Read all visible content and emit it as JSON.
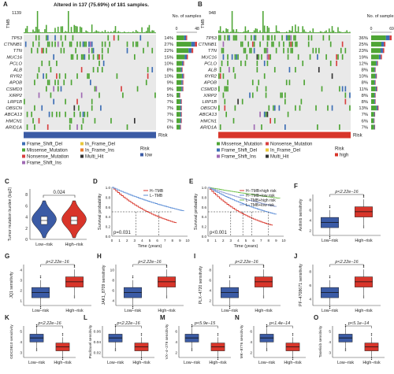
{
  "panels": {
    "A": {
      "letter": "A",
      "title": "Altered in 137 (75.69%) of 181 samples.",
      "tmb_label": "TMB",
      "tmb_max": "1139",
      "nos_label": "No. of samples",
      "nos_ticks": [
        "0",
        "48"
      ],
      "genes": [
        "TP53",
        "CTNNB1",
        "TTN",
        "MUC16",
        "PCLO",
        "ALB",
        "RYR2",
        "APOB",
        "CSMD3",
        "XIRP2",
        "LRP1B",
        "OBSCN",
        "ABCA13",
        "HMCN1",
        "ARID1A"
      ],
      "pcts": [
        "14%",
        "27%",
        "22%",
        "15%",
        "10%",
        "8%",
        "10%",
        "9%",
        "9%",
        "5%",
        "7%",
        "7%",
        "7%",
        "7%",
        "6%"
      ],
      "risk_label": "Risk",
      "legend": [
        "Frame_Shift_Del",
        "In_Frame_Del",
        "Missense_Mutation",
        "In_Frame_Ins",
        "Nonsense_Mutation",
        "Multi_Hit",
        "Frame_Shift_Ins"
      ],
      "risk_legend": "Risk",
      "risk_legend_value": "low"
    },
    "B": {
      "letter": "B",
      "tmb_label": "TMB",
      "tmb_max": "948",
      "nos_label": "No. of samples",
      "nos_ticks": [
        "0",
        "69"
      ],
      "genes": [
        "TP53",
        "CTNNB1",
        "TTN",
        "MUC16",
        "PCLO",
        "ALB",
        "RYR2",
        "APOB",
        "CSMD3",
        "XIRP2",
        "LRP1B",
        "OBSCN",
        "ABCA13",
        "HMCN1",
        "ARID1A"
      ],
      "pcts": [
        "36%",
        "25%",
        "23%",
        "19%",
        "12%",
        "8%",
        "10%",
        "8%",
        "11%",
        "8%",
        "8%",
        "13%",
        "7%",
        "6%",
        "7%"
      ],
      "risk_label": "Risk",
      "legend": [
        "Missense_Mutation",
        "Nonsense_Mutation",
        "Frame_Shift_Del",
        "In_Frame_Del",
        "Frame_Shift_Ins",
        "Multi_Hit"
      ],
      "risk_legend": "Risk",
      "risk_legend_value": "high"
    },
    "C": {
      "letter": "C",
      "ylabel": "Tumor mutation burden (log2)",
      "pvalue": "0.024",
      "yticks": [
        "0",
        "2",
        "4",
        "6",
        "8"
      ],
      "groups": [
        "Low−risk",
        "High−risk"
      ]
    },
    "D": {
      "letter": "D",
      "ylabel": "Survival probability",
      "xlabel": "Time (years)",
      "pvalue": "p=0.031",
      "legend": [
        "H−TMB",
        "L−TMB"
      ],
      "yticks": [
        "0.0",
        "0.2",
        "0.4",
        "0.6",
        "0.8",
        "1.0"
      ],
      "xticks": [
        "0",
        "1",
        "2",
        "3",
        "4",
        "5",
        "6",
        "7",
        "8",
        "9",
        "10"
      ]
    },
    "E": {
      "letter": "E",
      "ylabel": "Survival probability",
      "xlabel": "Time (years)",
      "pvalue": "p<0.001",
      "legend": [
        "H−TMB+high risk",
        "H−TMB+low risk",
        "L−TMB+high risk",
        "L−TMB+low risk"
      ],
      "yticks": [
        "0.0",
        "0.2",
        "0.4",
        "0.6",
        "0.8",
        "1.0"
      ],
      "xticks": [
        "0",
        "1",
        "2",
        "3",
        "4",
        "5",
        "6",
        "7",
        "8",
        "9",
        "10"
      ]
    },
    "boxplots": [
      {
        "letter": "F",
        "ylabel": "Axitinib sensitivity",
        "pvalue": "p<2.22e−16",
        "groups": [
          "Low−risk",
          "High−risk"
        ],
        "yticks": [
          "2",
          "4",
          "6",
          "8"
        ],
        "low_higher": false
      },
      {
        "letter": "G",
        "ylabel": "JQ1 sensitivity",
        "pvalue": "p<2.22e−16",
        "groups": [
          "Low−risk",
          "High−risk"
        ],
        "yticks": [
          "1",
          "2",
          "3",
          "4"
        ],
        "low_higher": false
      },
      {
        "letter": "H",
        "ylabel": "JAK1_8709 sensitivity",
        "pvalue": "p<2.22e−16",
        "groups": [
          "Low−risk",
          "High−risk"
        ],
        "yticks": [
          "4",
          "6",
          "8",
          "10"
        ],
        "low_higher": false
      },
      {
        "letter": "I",
        "ylabel": "PLX−4720 sensitivity",
        "pvalue": "p<2.22e−16",
        "groups": [
          "Low−risk",
          "High−risk"
        ],
        "yticks": [
          "2",
          "4",
          "6",
          "8"
        ],
        "low_higher": false
      },
      {
        "letter": "J",
        "ylabel": "PF−4708671 sensitivity",
        "pvalue": "p<2.22e−16",
        "groups": [
          "Low−risk",
          "High−risk"
        ],
        "yticks": [
          "4",
          "6",
          "8"
        ],
        "low_higher": false
      },
      {
        "letter": "K",
        "ylabel": "GDC0810 sensitivity",
        "pvalue": "p<2.22e−16",
        "groups": [
          "Low−risk",
          "High−risk"
        ],
        "yticks": [
          "3",
          "4",
          "5"
        ],
        "low_higher": true
      },
      {
        "letter": "L",
        "ylabel": "Paclitaxel sensitivity",
        "pvalue": "p<2.22e−16",
        "groups": [
          "Low−risk",
          "High−risk"
        ],
        "yticks": [
          "0.02",
          "0.04",
          "0.06"
        ],
        "low_higher": true
      },
      {
        "letter": "M",
        "ylabel": "VX−4−279 sensitivity",
        "pvalue": "p<5.9e−15",
        "groups": [
          "Low−risk",
          "High−risk"
        ],
        "yticks": [
          "2",
          "4",
          "6"
        ],
        "low_higher": true
      },
      {
        "letter": "N",
        "ylabel": "MK−8776 sensitivity",
        "pvalue": "p<1.4e−14",
        "groups": [
          "Low−risk",
          "High−risk"
        ],
        "yticks": [
          "2",
          "4",
          "6"
        ],
        "low_higher": true
      },
      {
        "letter": "O",
        "ylabel": "Taselisib sensitivity",
        "pvalue": "p<5.1e−14",
        "groups": [
          "Low−risk",
          "High−risk"
        ],
        "yticks": [
          "3",
          "4",
          "5"
        ],
        "low_higher": true
      }
    ]
  },
  "colors": {
    "missense": "#4ea535",
    "frame_shift_del": "#3d6eb5",
    "nonsense": "#d84040",
    "frame_shift_ins": "#a06ab4",
    "in_frame_del": "#e8c73a",
    "in_frame_ins": "#e87b2f",
    "multi_hit": "#333333",
    "low_risk": "#3b5ba5",
    "high_risk": "#d8352a",
    "survival_green": "#6fc04b",
    "survival_blue": "#5b8dd6"
  }
}
